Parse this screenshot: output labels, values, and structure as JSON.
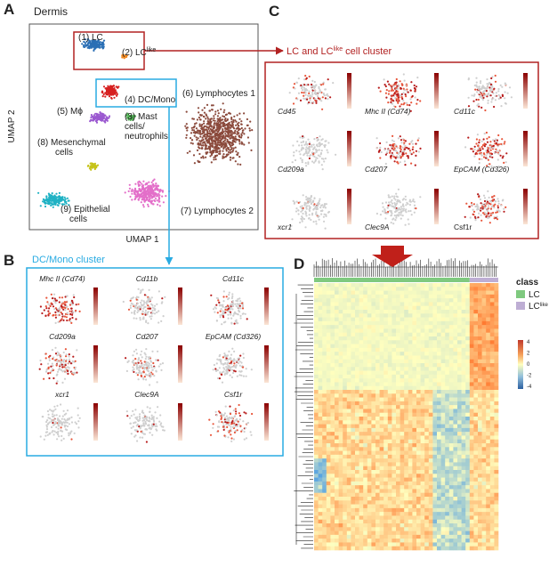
{
  "panel_a": {
    "letter": "A",
    "title": "Dermis",
    "y_axis": "UMAP 2",
    "x_axis": "UMAP 1",
    "clusters": [
      {
        "lines": [
          "(1) LC"
        ]
      },
      {
        "lines": [
          "(2) LC"
        ],
        "sup": "like"
      },
      {
        "lines": [
          "(3) Mast",
          "cells/",
          "neutrophils"
        ]
      },
      {
        "lines": [
          "(4) DC/Mono"
        ]
      },
      {
        "lines": [
          "(5) Mϕ"
        ]
      },
      {
        "lines": [
          "(6) Lymphocytes 1"
        ]
      },
      {
        "lines": [
          "(7) Lymphocytes 2"
        ]
      },
      {
        "lines": [
          "(8) Mesenchymal",
          "cells"
        ]
      },
      {
        "lines": [
          "(9) Epithelial",
          "cells"
        ]
      }
    ]
  },
  "panel_b": {
    "letter": "B",
    "title": "DC/Mono cluster",
    "genes": [
      "Mhc II (Cd74)",
      "Cd11b",
      "Cd11c",
      "Cd209a",
      "Cd207",
      "EpCAM (Cd326)",
      "xcr1",
      "Clec9A",
      "Csf1r"
    ]
  },
  "panel_c": {
    "letter": "C",
    "title": "LC and LC",
    "title_sup": "like",
    "title_end": " cell cluster",
    "genes": [
      "Cd45",
      "Mhc II (Cd74)",
      "Cd11c",
      "Cd209a",
      "Cd207",
      "EpCAM (Cd326)",
      "xcr1",
      "Clec9A",
      "Csf1r"
    ]
  },
  "panel_d": {
    "letter": "D",
    "legend_title": "class",
    "legend": [
      {
        "label": "LC"
      },
      {
        "label": "LC",
        "sup": "like"
      }
    ],
    "colorbar_ticks": [
      "4",
      "2",
      "0",
      "-2",
      "-4"
    ]
  }
}
